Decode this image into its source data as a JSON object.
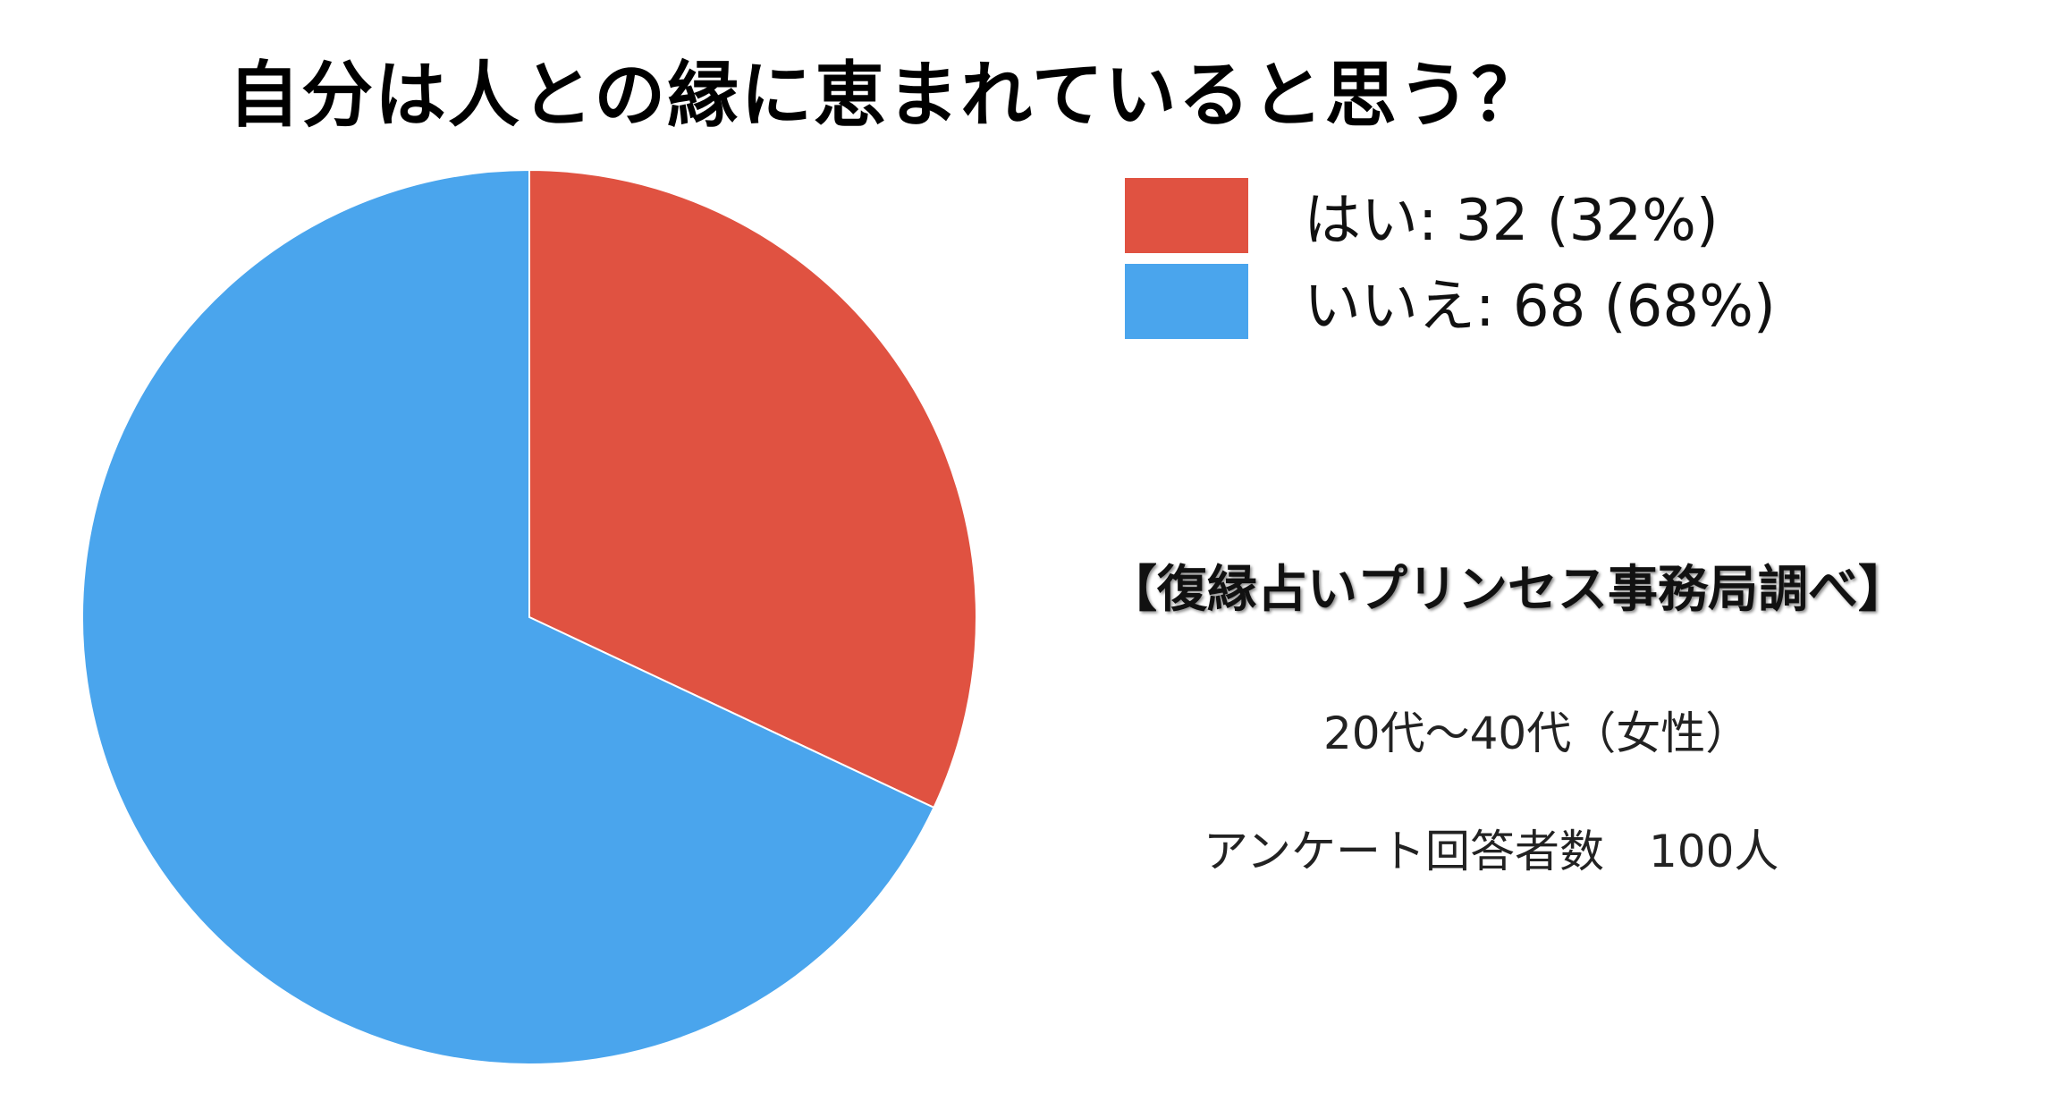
{
  "chart_data": {
    "type": "pie",
    "title": "自分は人との縁に恵まれていると思う？",
    "slices": [
      {
        "label": "はい",
        "value": 32,
        "percent": 32,
        "color": "#e05241",
        "legend_text": "はい: 32 (32%)"
      },
      {
        "label": "いいえ",
        "value": 68,
        "percent": 68,
        "color": "#4aa5ed",
        "legend_text": "いいえ: 68 (68%)"
      }
    ],
    "start_angle_deg": 0,
    "direction": "clockwise",
    "legend_position": "top-right"
  },
  "annotations": {
    "source": "【復縁占いプリンセス事務局調べ】",
    "demographic": "20代〜40代（女性）",
    "respondents": "アンケート回答者数　100人"
  }
}
